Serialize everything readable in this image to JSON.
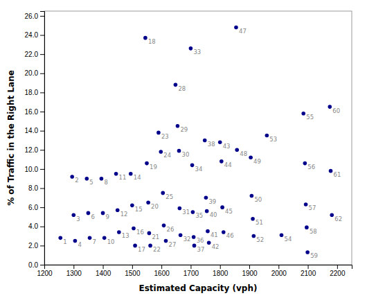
{
  "chart_data": {
    "type": "scatter",
    "xlabel": "Estimated Capacity (vph)",
    "ylabel": "% of Traffic in the Right Lane",
    "x": [
      1255,
      1295,
      1300,
      1305,
      1345,
      1350,
      1355,
      1395,
      1400,
      1405,
      1445,
      1450,
      1455,
      1495,
      1500,
      1505,
      1510,
      1545,
      1550,
      1555,
      1558,
      1562,
      1590,
      1598,
      1605,
      1608,
      1615,
      1648,
      1655,
      1660,
      1662,
      1665,
      1700,
      1705,
      1707,
      1710,
      1712,
      1748,
      1752,
      1755,
      1758,
      1762,
      1800,
      1805,
      1808,
      1812,
      1855,
      1858,
      1905,
      1908,
      1912,
      1915,
      1960,
      2010,
      2085,
      2090,
      2093,
      2096,
      2099,
      2175,
      2178,
      2182
    ],
    "values": [
      2.8,
      9.2,
      5.2,
      2.5,
      9.0,
      5.4,
      2.8,
      9.0,
      5.4,
      2.8,
      9.5,
      5.7,
      3.4,
      9.5,
      6.2,
      3.8,
      2.0,
      23.7,
      10.6,
      6.5,
      3.3,
      2.0,
      13.8,
      11.8,
      7.5,
      4.1,
      2.5,
      18.8,
      14.5,
      11.9,
      5.9,
      3.1,
      22.6,
      10.4,
      5.5,
      2.9,
      2.0,
      13.0,
      7.0,
      5.6,
      3.5,
      2.3,
      12.8,
      10.8,
      6.0,
      3.4,
      24.8,
      12.0,
      11.2,
      7.2,
      4.8,
      3.0,
      13.5,
      3.1,
      15.8,
      10.6,
      6.3,
      3.9,
      1.3,
      16.5,
      9.8,
      5.2
    ],
    "labels": [
      "1",
      "2",
      "3",
      "4",
      "5",
      "6",
      "7",
      "8",
      "9",
      "10",
      "11",
      "12",
      "13",
      "14",
      "15",
      "16",
      "17",
      "18",
      "19",
      "20",
      "21",
      "22",
      "23",
      "24",
      "25",
      "26",
      "27",
      "28",
      "29",
      "30",
      "31",
      "32",
      "33",
      "34",
      "35",
      "36",
      "37",
      "38",
      "39",
      "40",
      "41",
      "42",
      "43",
      "44",
      "45",
      "46",
      "47",
      "48",
      "49",
      "50",
      "51",
      "52",
      "53",
      "54",
      "55",
      "56",
      "57",
      "58",
      "59",
      "60",
      "61",
      "62"
    ],
    "color": "#00008B",
    "xlim": [
      1200,
      2250
    ],
    "ylim": [
      0.0,
      26.5
    ],
    "xticks": [
      1200,
      1300,
      1400,
      1500,
      1600,
      1700,
      1800,
      1900,
      2000,
      2100,
      2200
    ],
    "yticks": [
      {
        "value": 0.0,
        "label": "0.0"
      },
      {
        "value": 2.0,
        "label": "2.0"
      },
      {
        "value": 4.0,
        "label": "4.0"
      },
      {
        "value": 6.0,
        "label": "6.0"
      },
      {
        "value": 8.0,
        "label": "8.0"
      },
      {
        "value": 10.0,
        "label": "10.0"
      },
      {
        "value": 12.0,
        "label": "12.0"
      },
      {
        "value": 14.0,
        "label": "14.0"
      },
      {
        "value": 16.0,
        "label": "16.0"
      },
      {
        "value": 18.0,
        "label": "18.0"
      },
      {
        "value": 20.0,
        "label": "20.0"
      },
      {
        "value": 22.0,
        "label": "22.0"
      },
      {
        "value": 24.0,
        "label": "24.0"
      },
      {
        "value": 26.0,
        "label": "26.0"
      }
    ],
    "grid": false
  }
}
